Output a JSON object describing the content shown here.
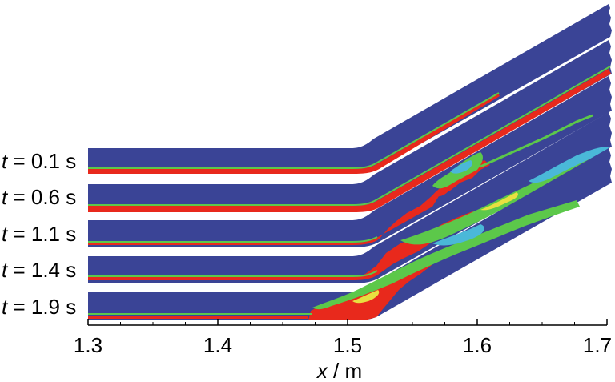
{
  "chart_data": {
    "type": "heatmap",
    "title": "",
    "xlabel_var": "x",
    "xlabel_unit": " / m",
    "xlim": [
      1.3,
      1.7
    ],
    "x_ticks": [
      "1.3",
      "1.4",
      "1.5",
      "1.6",
      "1.7"
    ],
    "x_tick_values": [
      1.3,
      1.4,
      1.5,
      1.6,
      1.7
    ],
    "bend_x": 1.5,
    "grid": false,
    "rows": [
      {
        "var": "t",
        "label": " = 0.1 s",
        "time": 0.1
      },
      {
        "var": "t",
        "label": " = 0.6 s",
        "time": 0.6
      },
      {
        "var": "t",
        "label": " = 1.1 s",
        "time": 1.1
      },
      {
        "var": "t",
        "label": " = 1.4 s",
        "time": 1.4
      },
      {
        "var": "t",
        "label": " = 1.9 s",
        "time": 1.9
      }
    ],
    "colors": {
      "background_field": "#3a4496",
      "interface_green": "#5cc84a",
      "interface_yellow": "#e8e040",
      "interface_cyan": "#4ab8d8",
      "dense_red": "#e8291c"
    }
  }
}
